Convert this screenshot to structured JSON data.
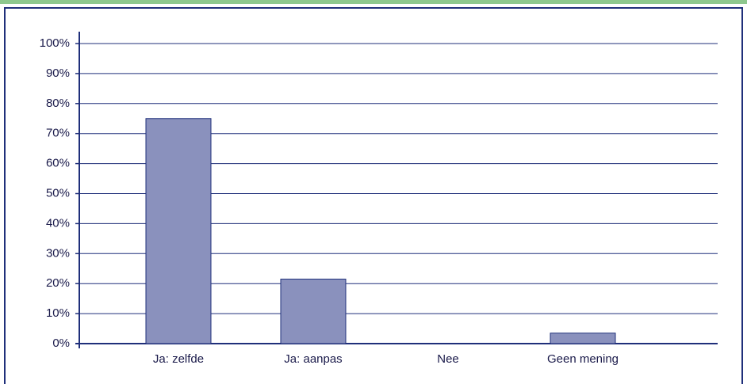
{
  "chart_data": {
    "type": "bar",
    "categories": [
      "Ja: zelfde",
      "Ja: aanpas",
      "Nee",
      "Geen mening"
    ],
    "values": [
      75,
      21.5,
      0,
      3.5
    ],
    "color": "#8a91bd",
    "ylim": [
      0,
      100
    ],
    "yticks": [
      {
        "value": 0,
        "label": "0%"
      },
      {
        "value": 10,
        "label": "10%"
      },
      {
        "value": 20,
        "label": "20%"
      },
      {
        "value": 30,
        "label": "30%"
      },
      {
        "value": 40,
        "label": "40%"
      },
      {
        "value": 50,
        "label": "50%"
      },
      {
        "value": 60,
        "label": "60%"
      },
      {
        "value": 70,
        "label": "70%"
      },
      {
        "value": 80,
        "label": "80%"
      },
      {
        "value": 90,
        "label": "90%"
      },
      {
        "value": 100,
        "label": "100%"
      }
    ],
    "grid": true
  }
}
